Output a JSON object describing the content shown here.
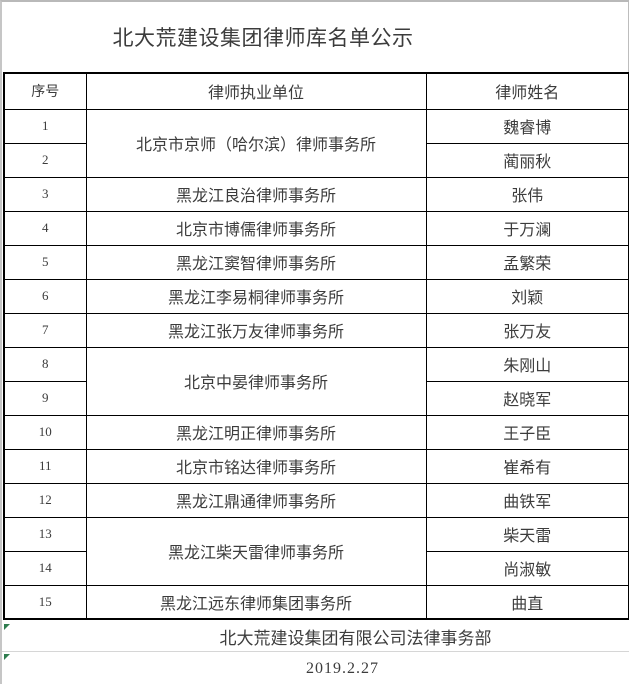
{
  "title": "北大荒建设集团律师库名单公示",
  "table": {
    "headers": {
      "no": "序号",
      "firm": "律师执业单位",
      "name": "律师姓名"
    },
    "rows": [
      {
        "no": "1",
        "firm": "北京市京师（哈尔滨）律师事务所",
        "name": "魏睿博"
      },
      {
        "no": "2",
        "name": "蔺丽秋"
      },
      {
        "no": "3",
        "firm": "黑龙江良治律师事务所",
        "name": "张伟"
      },
      {
        "no": "4",
        "firm": "北京市博儒律师事务所",
        "name": "于万澜"
      },
      {
        "no": "5",
        "firm": "黑龙江窦智律师事务所",
        "name": "孟繁荣"
      },
      {
        "no": "6",
        "firm": "黑龙江李易桐律师事务所",
        "name": "刘颖"
      },
      {
        "no": "7",
        "firm": "黑龙江张万友律师事务所",
        "name": "张万友"
      },
      {
        "no": "8",
        "firm": "北京中晏律师事务所",
        "name": "朱刚山"
      },
      {
        "no": "9",
        "name": "赵晓军"
      },
      {
        "no": "10",
        "firm": "黑龙江明正律师事务所",
        "name": "王子臣"
      },
      {
        "no": "11",
        "firm": "北京市铭达律师事务所",
        "name": "崔希有"
      },
      {
        "no": "12",
        "firm": "黑龙江鼎通律师事务所",
        "name": "曲铁军"
      },
      {
        "no": "13",
        "firm": "黑龙江柴天雷律师事务所",
        "name": "柴天雷"
      },
      {
        "no": "14",
        "name": "尚淑敏"
      },
      {
        "no": "15",
        "firm": "黑龙江远东律师集团事务所",
        "name": "曲直"
      }
    ]
  },
  "footer": {
    "department": "北大荒建设集团有限公司法律事务部",
    "date": "2019.2.27"
  },
  "icons": {
    "cell_flag": "excel-green-corner-flag"
  },
  "colors": {
    "table_border": "#000000",
    "text": "#3c3c3c",
    "flag_green": "#2f7d4f",
    "light_divider": "#d6d6d6"
  }
}
